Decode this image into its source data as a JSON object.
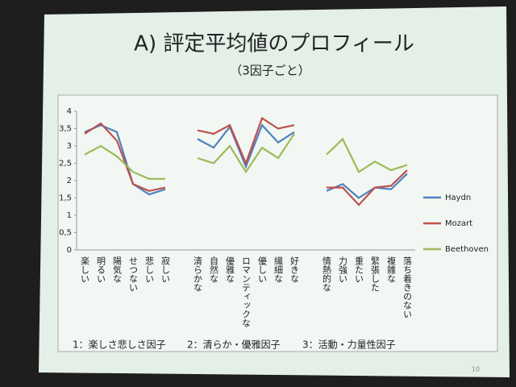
{
  "chart_data": {
    "type": "line",
    "title": "A)  評定平均値のプロフィール",
    "subtitle": "（3因子ごと）",
    "categories": [
      "楽しい",
      "明るい",
      "陽気な",
      "せつない",
      "悲しい",
      "寂しい",
      null,
      "清らかな",
      "自然な",
      "優雅な",
      "ロマンティックな",
      "優しい",
      "繊細な",
      "好きな",
      null,
      "情熱的な",
      "力強い",
      "重たい",
      "緊張した",
      "複雑な",
      "落ち着きのない"
    ],
    "series": [
      {
        "name": "Haydn",
        "color": "#4f81bd",
        "values": [
          3.4,
          3.6,
          3.4,
          1.9,
          1.6,
          1.75,
          null,
          3.2,
          2.95,
          3.55,
          2.4,
          3.6,
          3.1,
          3.4,
          null,
          1.7,
          1.9,
          1.5,
          1.8,
          1.75,
          2.2
        ]
      },
      {
        "name": "Mozart",
        "color": "#c0504d",
        "values": [
          3.35,
          3.65,
          3.15,
          1.9,
          1.7,
          1.8,
          null,
          3.45,
          3.35,
          3.6,
          2.5,
          3.8,
          3.5,
          3.6,
          null,
          1.8,
          1.8,
          1.3,
          1.8,
          1.85,
          2.3
        ]
      },
      {
        "name": "Beethoven",
        "color": "#9bbb59",
        "values": [
          2.75,
          3.0,
          2.7,
          2.25,
          2.05,
          2.05,
          null,
          2.65,
          2.5,
          3.0,
          2.25,
          2.95,
          2.65,
          3.35,
          null,
          2.75,
          3.2,
          2.25,
          2.55,
          2.3,
          2.45
        ]
      }
    ],
    "ylim": [
      0,
      4
    ],
    "yticks": [
      0,
      {
        "value": 0.5,
        "label": "0,5"
      },
      1,
      {
        "value": 1.5,
        "label": "1,5"
      },
      2,
      {
        "value": 2.5,
        "label": "2,5"
      },
      3,
      {
        "value": 3.5,
        "label": "3,5"
      },
      4
    ],
    "legend": "right",
    "annotations": [
      "1：楽しさ悲しさ因子",
      "2：清らか・優雅因子",
      "3：活動・力量性因子"
    ],
    "page_number": "10"
  }
}
